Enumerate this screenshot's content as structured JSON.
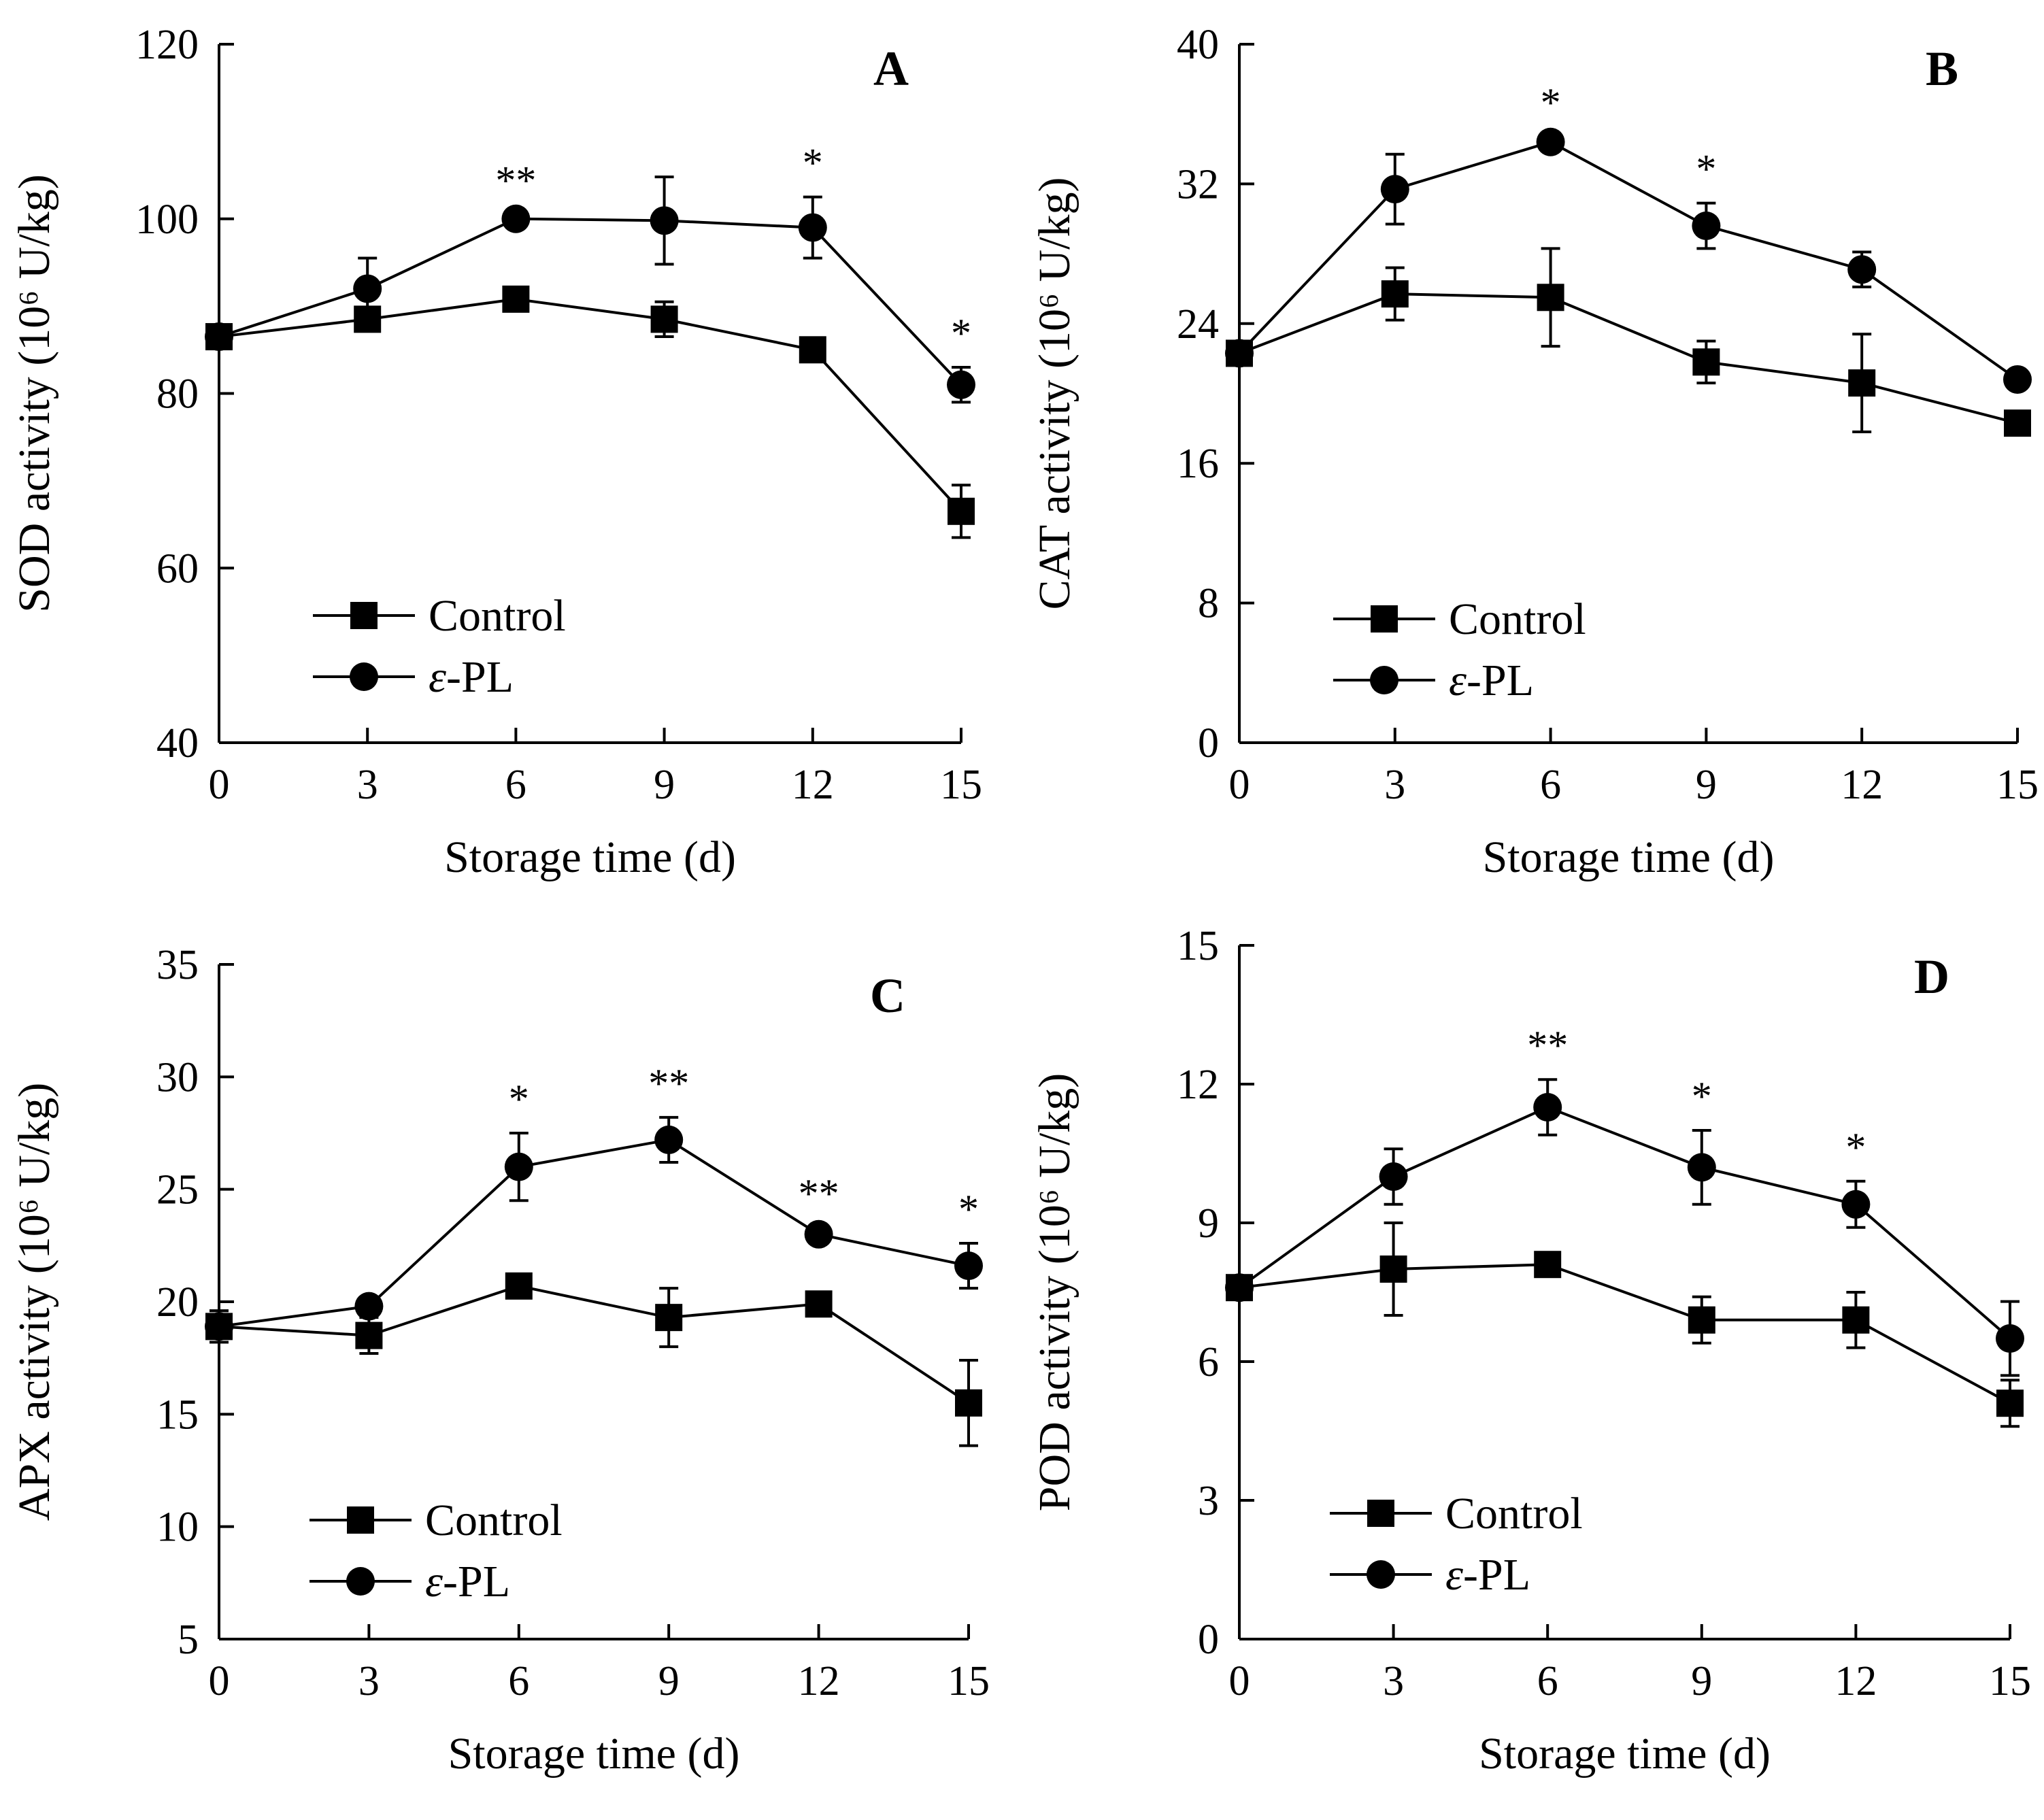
{
  "figure": {
    "legend_labels": [
      "Control",
      "ε-PL"
    ],
    "x_axis_label": "Storage time (d)",
    "y_axis_unit": "(10⁶ U/kg)"
  },
  "chart_data": [
    {
      "panel": "A",
      "type": "line",
      "ylabel": "SOD activity (10⁶ U/kg)",
      "xlabel": "Storage time (d)",
      "x": [
        0,
        3,
        6,
        9,
        12,
        15
      ],
      "xlim": [
        0,
        15
      ],
      "ylim": [
        40,
        120
      ],
      "yticks": [
        40,
        60,
        80,
        100,
        120
      ],
      "series": [
        {
          "name": "Control",
          "marker": "square",
          "values": [
            86.5,
            88.5,
            90.8,
            88.5,
            85.0,
            66.5
          ],
          "errors": [
            0.8,
            1.0,
            0.8,
            2.0,
            0.8,
            3.0
          ]
        },
        {
          "name": "ε-PL",
          "marker": "circle",
          "values": [
            86.5,
            92.0,
            100.0,
            99.8,
            99.0,
            81.0
          ],
          "errors": [
            0.8,
            3.5,
            0.5,
            5.0,
            3.5,
            2.0
          ]
        }
      ],
      "significance": [
        {
          "x": 6,
          "label": "**"
        },
        {
          "x": 12,
          "label": "*"
        },
        {
          "x": 15,
          "label": "*"
        }
      ]
    },
    {
      "panel": "B",
      "type": "line",
      "ylabel": "CAT activity (10⁶ U/kg)",
      "xlabel": "Storage time (d)",
      "x": [
        0,
        3,
        6,
        9,
        12,
        15
      ],
      "xlim": [
        0,
        15
      ],
      "ylim": [
        0,
        40
      ],
      "yticks": [
        0,
        8,
        16,
        24,
        32,
        40
      ],
      "series": [
        {
          "name": "Control",
          "marker": "square",
          "values": [
            22.3,
            25.7,
            25.5,
            21.8,
            20.6,
            18.3
          ],
          "errors": [
            0.5,
            1.5,
            2.8,
            1.2,
            2.8,
            0.5
          ]
        },
        {
          "name": "ε-PL",
          "marker": "circle",
          "values": [
            22.3,
            31.7,
            34.4,
            29.6,
            27.1,
            20.8
          ],
          "errors": [
            0.5,
            2.0,
            0.3,
            1.3,
            1.0,
            0.4
          ]
        }
      ],
      "significance": [
        {
          "x": 6,
          "label": "*"
        },
        {
          "x": 9,
          "label": "*"
        }
      ]
    },
    {
      "panel": "C",
      "type": "line",
      "ylabel": "APX activity (10⁶ U/kg)",
      "xlabel": "Storage time (d)",
      "x": [
        0,
        3,
        6,
        9,
        12,
        15
      ],
      "xlim": [
        0,
        15
      ],
      "ylim": [
        5,
        35
      ],
      "yticks": [
        5,
        10,
        15,
        20,
        25,
        30,
        35
      ],
      "series": [
        {
          "name": "Control",
          "marker": "square",
          "values": [
            18.9,
            18.5,
            20.7,
            19.3,
            19.9,
            15.5
          ],
          "errors": [
            0.7,
            0.8,
            0.3,
            1.3,
            0.3,
            1.9
          ]
        },
        {
          "name": "ε-PL",
          "marker": "circle",
          "values": [
            18.9,
            19.8,
            26.0,
            27.2,
            23.0,
            21.6
          ],
          "errors": [
            0.7,
            0.3,
            1.5,
            1.0,
            0.3,
            1.0
          ]
        }
      ],
      "significance": [
        {
          "x": 6,
          "label": "*"
        },
        {
          "x": 9,
          "label": "**"
        },
        {
          "x": 12,
          "label": "**"
        },
        {
          "x": 15,
          "label": "*"
        }
      ]
    },
    {
      "panel": "D",
      "type": "line",
      "ylabel": "POD activity (10⁶ U/kg)",
      "xlabel": "Storage time (d)",
      "x": [
        0,
        3,
        6,
        9,
        12,
        15
      ],
      "xlim": [
        0,
        15
      ],
      "ylim": [
        0,
        15
      ],
      "yticks": [
        0,
        3,
        6,
        9,
        12,
        15
      ],
      "series": [
        {
          "name": "Control",
          "marker": "square",
          "values": [
            7.6,
            8.0,
            8.1,
            6.9,
            6.9,
            5.1
          ],
          "errors": [
            0.2,
            1.0,
            0.2,
            0.5,
            0.6,
            0.5
          ]
        },
        {
          "name": "ε-PL",
          "marker": "circle",
          "values": [
            7.6,
            10.0,
            11.5,
            10.2,
            9.4,
            6.5
          ],
          "errors": [
            0.2,
            0.6,
            0.6,
            0.8,
            0.5,
            0.8
          ]
        }
      ],
      "significance": [
        {
          "x": 6,
          "label": "**"
        },
        {
          "x": 9,
          "label": "*"
        },
        {
          "x": 12,
          "label": "*"
        }
      ]
    }
  ]
}
